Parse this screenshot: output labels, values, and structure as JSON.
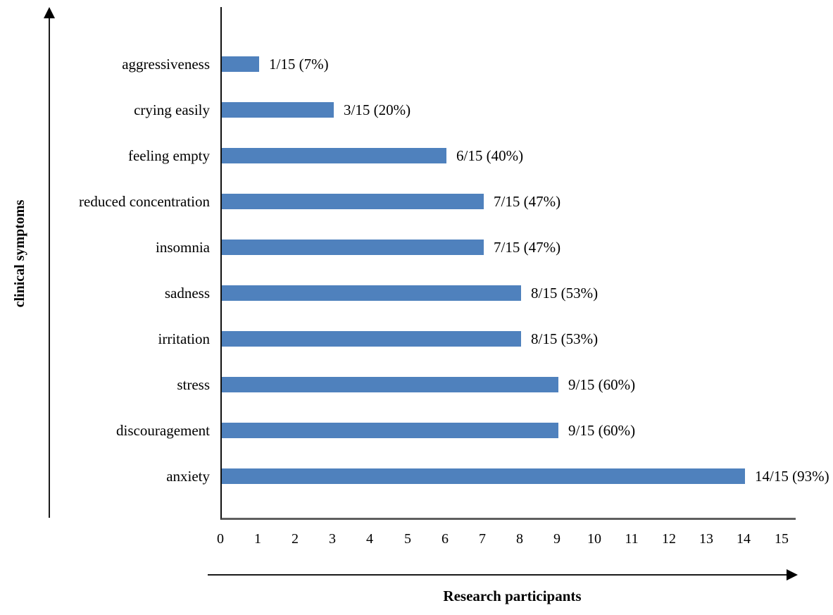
{
  "chart_data": {
    "type": "bar",
    "orientation": "horizontal",
    "xlabel": "Research participants",
    "ylabel": "clinical symptoms",
    "categories": [
      "aggressiveness",
      "crying easily",
      "feeling empty",
      "reduced concentration",
      "insomnia",
      "sadness",
      "irritation",
      "stress",
      "discouragement",
      "anxiety"
    ],
    "values": [
      1,
      3,
      6,
      7,
      7,
      8,
      8,
      9,
      9,
      14
    ],
    "denominator": 15,
    "data_labels": [
      "1/15 (7%)",
      "3/15 (20%)",
      "6/15 (40%)",
      "7/15 (47%)",
      "7/15 (47%)",
      "8/15 (53%)",
      "8/15 (53%)",
      "9/15 (60%)",
      "9/15 (60%)",
      "14/15 (93%)"
    ],
    "x_ticks": [
      "0",
      "1",
      "2",
      "3",
      "4",
      "5",
      "6",
      "7",
      "8",
      "9",
      "10",
      "11",
      "12",
      "13",
      "14",
      "15"
    ],
    "xlim": [
      0,
      15
    ],
    "bar_color": "#4f81bd",
    "grid": false,
    "legend": false
  }
}
